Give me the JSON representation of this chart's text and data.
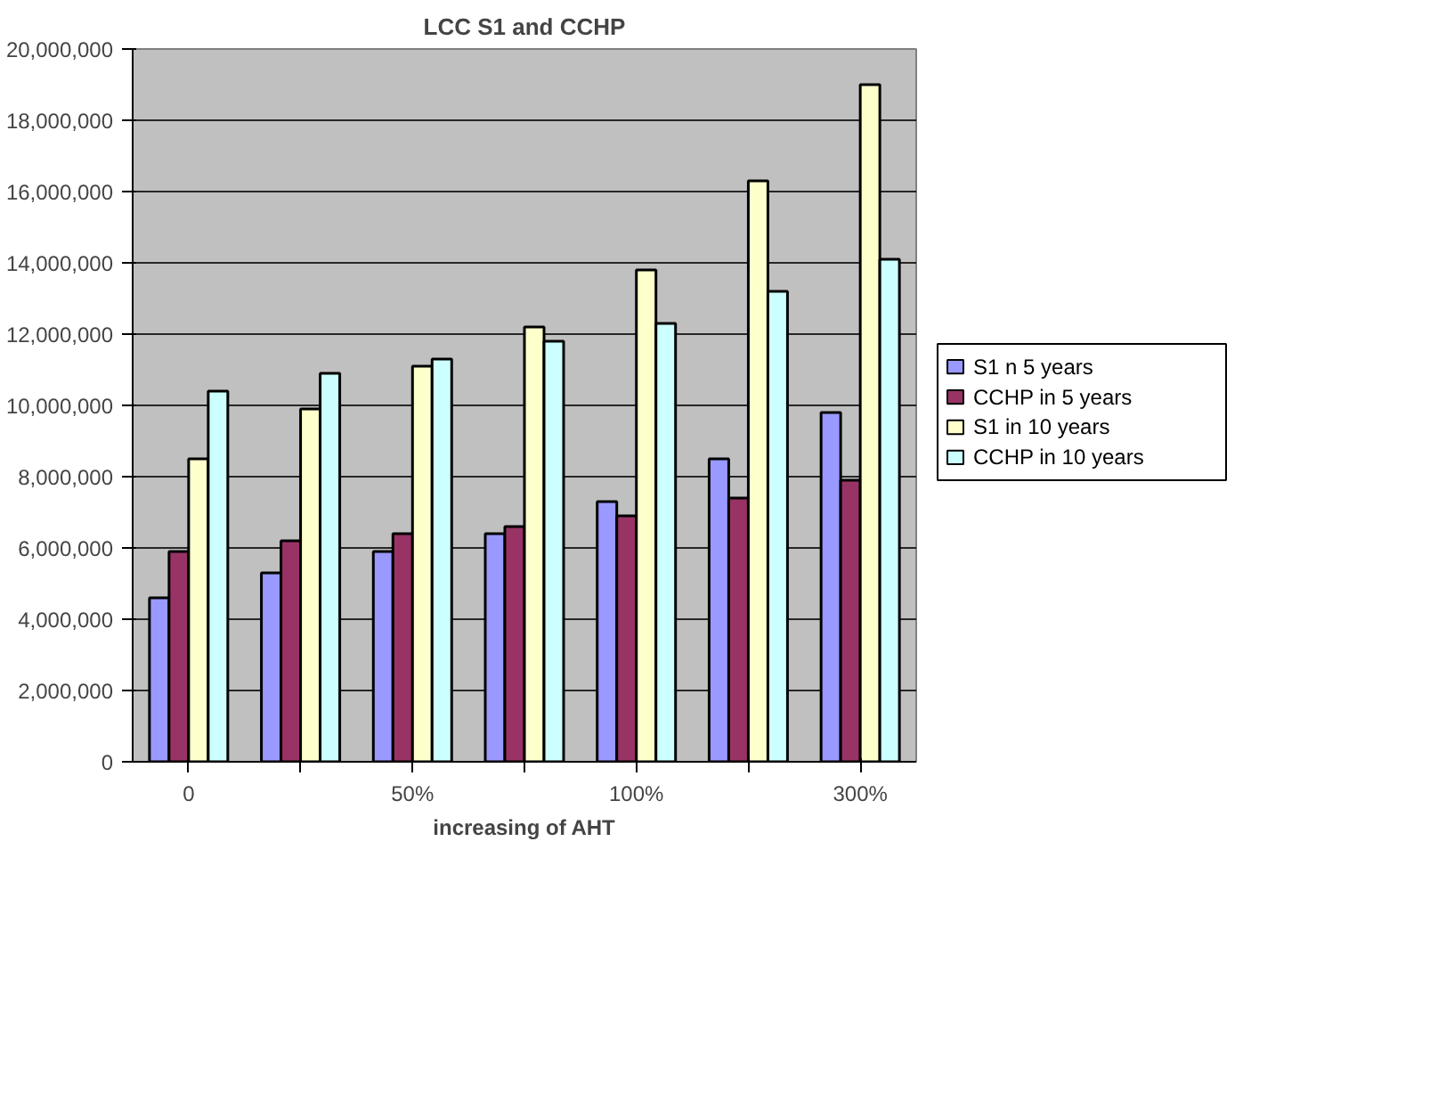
{
  "chart_data": {
    "type": "bar",
    "title": "LCC S1 and CCHP",
    "xlabel": "increasing of AHT",
    "categories": [
      "0",
      null,
      "50%",
      null,
      "100%",
      null,
      "300%"
    ],
    "series": [
      {
        "name": "S1 n 5 years",
        "color": "#9999ff",
        "values": [
          4600000,
          5300000,
          5900000,
          6400000,
          7300000,
          8500000,
          9800000
        ]
      },
      {
        "name": "CCHP in 5 years",
        "color": "#993366",
        "values": [
          5900000,
          6200000,
          6400000,
          6600000,
          6900000,
          7400000,
          7900000
        ]
      },
      {
        "name": "S1 in 10 years",
        "color": "#ffffcc",
        "values": [
          8500000,
          9900000,
          11100000,
          12200000,
          13800000,
          16300000,
          19000000
        ]
      },
      {
        "name": "CCHP in 10 years",
        "color": "#ccffff",
        "values": [
          10400000,
          10900000,
          11300000,
          11800000,
          12300000,
          13200000,
          14100000
        ]
      }
    ],
    "ylim": [
      0,
      20000000
    ],
    "yticks": [
      {
        "value": 0,
        "label": "0"
      },
      {
        "value": 2000000,
        "label": "2,000,000"
      },
      {
        "value": 4000000,
        "label": "4,000,000"
      },
      {
        "value": 6000000,
        "label": "6,000,000"
      },
      {
        "value": 8000000,
        "label": "8,000,000"
      },
      {
        "value": 10000000,
        "label": "10,000,000"
      },
      {
        "value": 12000000,
        "label": "12,000,000"
      },
      {
        "value": 14000000,
        "label": "14,000,000"
      },
      {
        "value": 16000000,
        "label": "16,000,000"
      },
      {
        "value": 18000000,
        "label": "18,000,000"
      },
      {
        "value": 20000000,
        "label": "20,000,000"
      }
    ],
    "grid": "y",
    "legend": "right"
  }
}
